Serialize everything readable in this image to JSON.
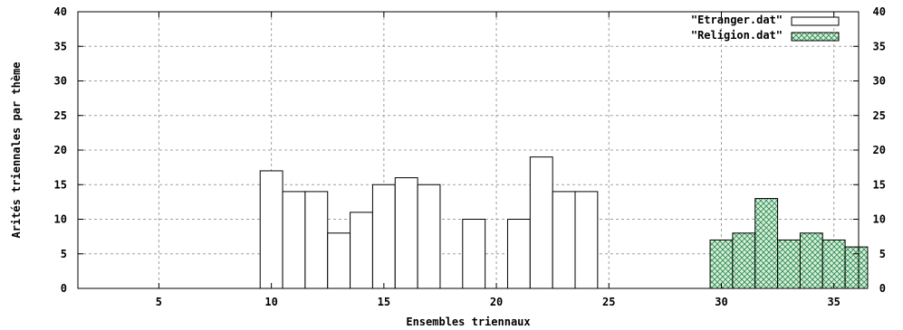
{
  "chart_data": {
    "type": "bar",
    "xlabel": "Ensembles triennaux",
    "ylabel": "Arités triennales par thème",
    "xlim": [
      1.4,
      36.1
    ],
    "ylim": [
      0,
      40
    ],
    "x_ticks": [
      5,
      10,
      15,
      20,
      25,
      30,
      35
    ],
    "y_ticks": [
      0,
      5,
      10,
      15,
      20,
      25,
      30,
      35,
      40
    ],
    "bar_width": 1,
    "grid": true,
    "legend_position": "top-right",
    "series": [
      {
        "name": "\"Etranger.dat\"",
        "fill": "#ffffff",
        "style": "empty",
        "points": [
          {
            "x": 10,
            "y": 17
          },
          {
            "x": 11,
            "y": 14
          },
          {
            "x": 12,
            "y": 14
          },
          {
            "x": 13,
            "y": 8
          },
          {
            "x": 14,
            "y": 11
          },
          {
            "x": 15,
            "y": 15
          },
          {
            "x": 16,
            "y": 16
          },
          {
            "x": 17,
            "y": 15
          },
          {
            "x": 19,
            "y": 10
          },
          {
            "x": 21,
            "y": 10
          },
          {
            "x": 22,
            "y": 19
          },
          {
            "x": 23,
            "y": 14
          },
          {
            "x": 24,
            "y": 14
          }
        ]
      },
      {
        "name": "\"Religion.dat\"",
        "fill": "#2e8b57",
        "style": "crosshatch",
        "points": [
          {
            "x": 30,
            "y": 7
          },
          {
            "x": 31,
            "y": 8
          },
          {
            "x": 32,
            "y": 13
          },
          {
            "x": 33,
            "y": 7
          },
          {
            "x": 34,
            "y": 8
          },
          {
            "x": 35,
            "y": 7
          },
          {
            "x": 36,
            "y": 6
          }
        ]
      }
    ]
  }
}
